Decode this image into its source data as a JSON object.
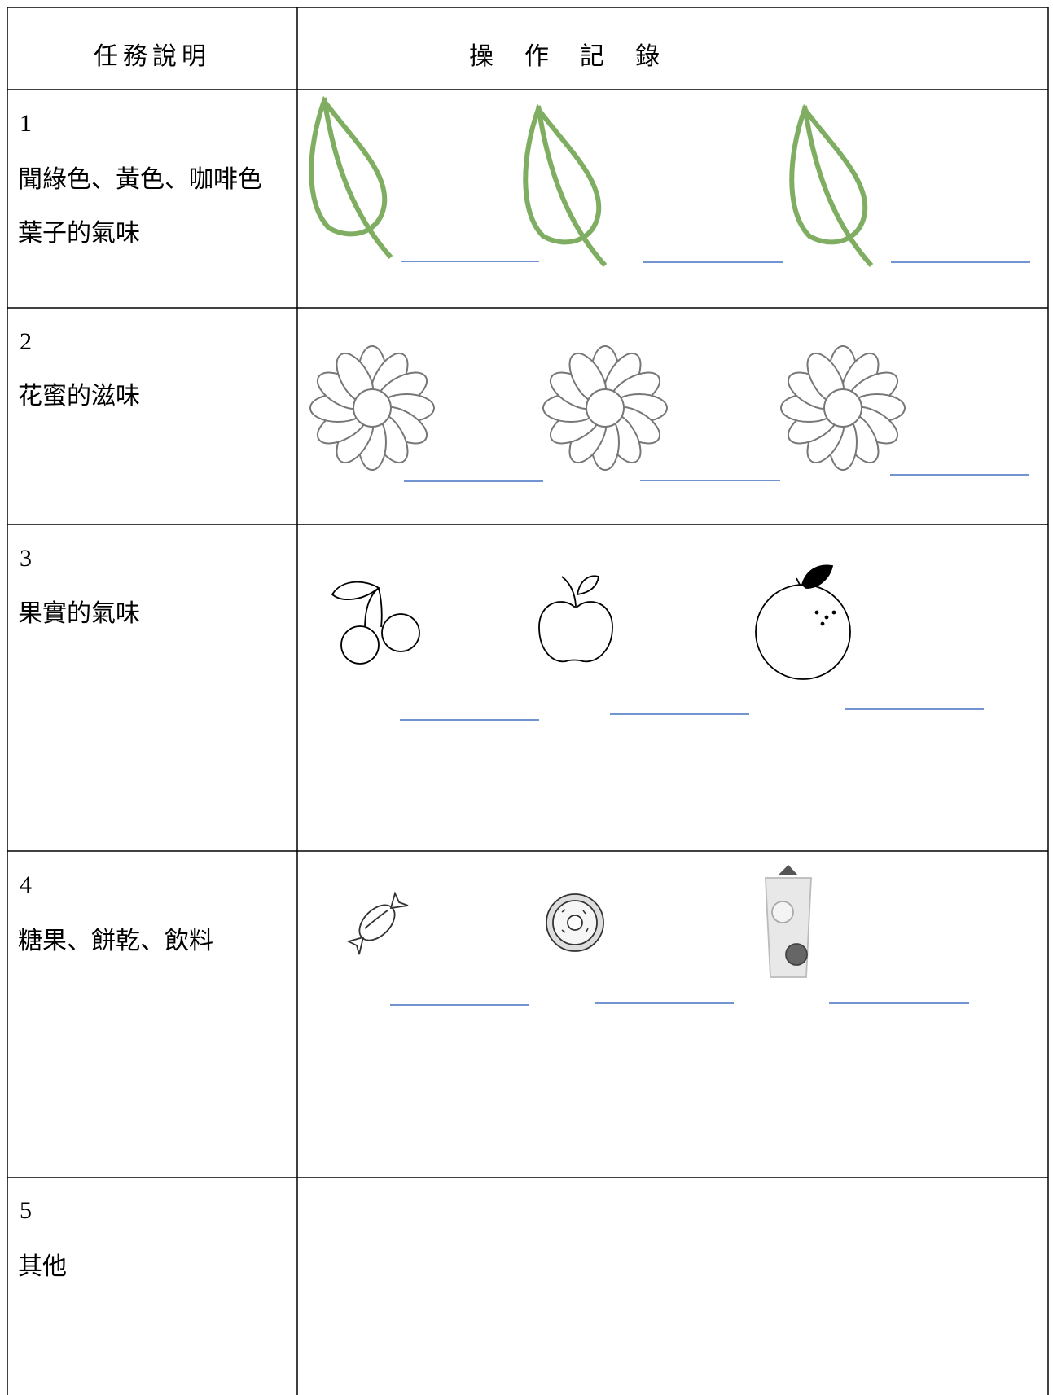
{
  "header": {
    "task": "任務說明",
    "record": "操作記錄"
  },
  "rows": [
    {
      "number": 1,
      "lines": [
        "聞綠色、黃色、咖啡色",
        "葉子的氣味"
      ]
    },
    {
      "number": 2,
      "lines": [
        "花蜜的滋味"
      ]
    },
    {
      "number": 3,
      "lines": [
        "果實的氣味"
      ]
    },
    {
      "number": 4,
      "lines": [
        "糖果、餅乾、飲料"
      ]
    },
    {
      "number": 5,
      "lines": [
        "其他"
      ]
    }
  ]
}
